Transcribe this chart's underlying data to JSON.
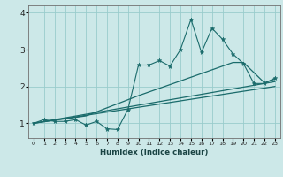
{
  "xlabel": "Humidex (Indice chaleur)",
  "bg_color": "#cce8e8",
  "grid_color": "#99cccc",
  "line_color": "#1a6b6b",
  "xlim": [
    -0.5,
    23.5
  ],
  "ylim": [
    0.6,
    4.2
  ],
  "x_ticks": [
    0,
    1,
    2,
    3,
    4,
    5,
    6,
    7,
    8,
    9,
    10,
    11,
    12,
    13,
    14,
    15,
    16,
    17,
    18,
    19,
    20,
    21,
    22,
    23
  ],
  "y_ticks": [
    1,
    2,
    3,
    4
  ],
  "jagged_x": [
    0,
    1,
    2,
    3,
    4,
    5,
    6,
    7,
    8,
    9,
    10,
    11,
    12,
    13,
    14,
    15,
    16,
    17,
    18,
    19,
    20,
    21,
    22,
    23
  ],
  "jagged_y": [
    1.0,
    1.1,
    1.05,
    1.05,
    1.1,
    0.95,
    1.05,
    0.85,
    0.83,
    1.38,
    2.58,
    2.58,
    2.7,
    2.55,
    3.0,
    3.82,
    2.92,
    3.58,
    3.28,
    2.88,
    2.62,
    2.08,
    2.08,
    2.23
  ],
  "upper_line_x": [
    0,
    5,
    10,
    15,
    19,
    20,
    22,
    23
  ],
  "upper_line_y": [
    1.0,
    1.2,
    1.75,
    2.25,
    2.65,
    2.65,
    2.1,
    2.2
  ],
  "lower_line_x": [
    0,
    23
  ],
  "lower_line_y": [
    1.0,
    2.0
  ],
  "mid_line_x": [
    0,
    23
  ],
  "mid_line_y": [
    1.0,
    2.13
  ]
}
